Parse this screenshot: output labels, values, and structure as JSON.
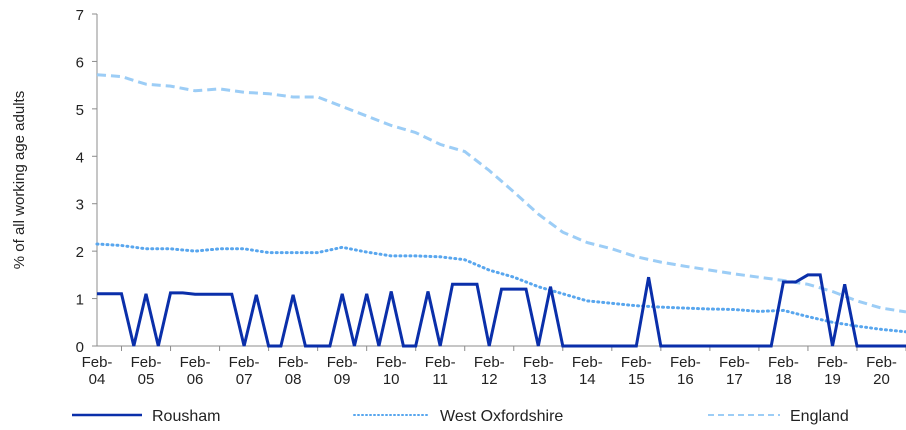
{
  "chart_data": {
    "type": "line",
    "ylabel": "% of all working age adults",
    "ylim": [
      0,
      7
    ],
    "yticks": [
      "0",
      "1",
      "2",
      "3",
      "4",
      "5",
      "6",
      "7"
    ],
    "xlim": [
      2004.08,
      2020.58
    ],
    "xticks": [
      {
        "x": 2004.08,
        "line1": "Feb-",
        "line2": "04"
      },
      {
        "x": 2005.08,
        "line1": "Feb-",
        "line2": "05"
      },
      {
        "x": 2006.08,
        "line1": "Feb-",
        "line2": "06"
      },
      {
        "x": 2007.08,
        "line1": "Feb-",
        "line2": "07"
      },
      {
        "x": 2008.08,
        "line1": "Feb-",
        "line2": "08"
      },
      {
        "x": 2009.08,
        "line1": "Feb-",
        "line2": "09"
      },
      {
        "x": 2010.08,
        "line1": "Feb-",
        "line2": "10"
      },
      {
        "x": 2011.08,
        "line1": "Feb-",
        "line2": "11"
      },
      {
        "x": 2012.08,
        "line1": "Feb-",
        "line2": "12"
      },
      {
        "x": 2013.08,
        "line1": "Feb-",
        "line2": "13"
      },
      {
        "x": 2014.08,
        "line1": "Feb-",
        "line2": "14"
      },
      {
        "x": 2015.08,
        "line1": "Feb-",
        "line2": "15"
      },
      {
        "x": 2016.08,
        "line1": "Feb-",
        "line2": "16"
      },
      {
        "x": 2017.08,
        "line1": "Feb-",
        "line2": "17"
      },
      {
        "x": 2018.08,
        "line1": "Feb-",
        "line2": "18"
      },
      {
        "x": 2019.08,
        "line1": "Feb-",
        "line2": "19"
      },
      {
        "x": 2020.08,
        "line1": "Feb-",
        "line2": "20"
      }
    ],
    "grid": false,
    "legend_position": "bottom",
    "series": [
      {
        "name": "Rousham",
        "color": "#0a2faa",
        "style": "solid",
        "points": [
          [
            2004.08,
            1.1
          ],
          [
            2004.58,
            1.1
          ],
          [
            2004.83,
            0.0
          ],
          [
            2005.08,
            1.1
          ],
          [
            2005.33,
            0.0
          ],
          [
            2005.58,
            1.12
          ],
          [
            2005.83,
            1.12
          ],
          [
            2006.08,
            1.09
          ],
          [
            2006.83,
            1.09
          ],
          [
            2007.08,
            0.0
          ],
          [
            2007.33,
            1.08
          ],
          [
            2007.58,
            0.0
          ],
          [
            2007.83,
            0.0
          ],
          [
            2008.08,
            1.08
          ],
          [
            2008.33,
            0.0
          ],
          [
            2008.83,
            0.0
          ],
          [
            2009.08,
            1.1
          ],
          [
            2009.33,
            0.0
          ],
          [
            2009.58,
            1.1
          ],
          [
            2009.83,
            0.0
          ],
          [
            2010.08,
            1.15
          ],
          [
            2010.33,
            0.0
          ],
          [
            2010.58,
            0.0
          ],
          [
            2010.83,
            1.15
          ],
          [
            2011.08,
            0.0
          ],
          [
            2011.33,
            1.3
          ],
          [
            2011.83,
            1.3
          ],
          [
            2012.08,
            0.0
          ],
          [
            2012.33,
            1.2
          ],
          [
            2012.83,
            1.2
          ],
          [
            2013.08,
            0.0
          ],
          [
            2013.33,
            1.25
          ],
          [
            2013.58,
            0.0
          ],
          [
            2015.08,
            0.0
          ],
          [
            2015.33,
            1.45
          ],
          [
            2015.58,
            0.0
          ],
          [
            2017.83,
            0.0
          ],
          [
            2018.08,
            1.35
          ],
          [
            2018.33,
            1.35
          ],
          [
            2018.58,
            1.5
          ],
          [
            2018.83,
            1.5
          ],
          [
            2019.08,
            0.0
          ],
          [
            2019.33,
            1.3
          ],
          [
            2019.58,
            0.0
          ],
          [
            2020.58,
            0.0
          ]
        ]
      },
      {
        "name": "West Oxfordshire",
        "color": "#58a6ee",
        "style": "dotted",
        "points": [
          [
            2004.08,
            2.15
          ],
          [
            2004.58,
            2.12
          ],
          [
            2005.08,
            2.05
          ],
          [
            2005.58,
            2.05
          ],
          [
            2006.08,
            2.0
          ],
          [
            2006.58,
            2.05
          ],
          [
            2007.08,
            2.05
          ],
          [
            2007.58,
            1.97
          ],
          [
            2008.08,
            1.97
          ],
          [
            2008.58,
            1.97
          ],
          [
            2009.08,
            2.08
          ],
          [
            2009.58,
            1.98
          ],
          [
            2010.08,
            1.9
          ],
          [
            2010.58,
            1.9
          ],
          [
            2011.08,
            1.88
          ],
          [
            2011.58,
            1.82
          ],
          [
            2012.08,
            1.6
          ],
          [
            2012.58,
            1.45
          ],
          [
            2013.08,
            1.25
          ],
          [
            2013.58,
            1.1
          ],
          [
            2014.08,
            0.95
          ],
          [
            2014.58,
            0.9
          ],
          [
            2015.08,
            0.85
          ],
          [
            2015.58,
            0.82
          ],
          [
            2016.08,
            0.8
          ],
          [
            2016.58,
            0.78
          ],
          [
            2017.08,
            0.77
          ],
          [
            2017.58,
            0.73
          ],
          [
            2018.08,
            0.75
          ],
          [
            2018.58,
            0.62
          ],
          [
            2019.08,
            0.5
          ],
          [
            2019.58,
            0.42
          ],
          [
            2020.08,
            0.35
          ],
          [
            2020.58,
            0.3
          ]
        ]
      },
      {
        "name": "England",
        "color": "#9ccdf6",
        "style": "dashed",
        "points": [
          [
            2004.08,
            5.72
          ],
          [
            2004.58,
            5.68
          ],
          [
            2005.08,
            5.52
          ],
          [
            2005.58,
            5.48
          ],
          [
            2006.08,
            5.38
          ],
          [
            2006.58,
            5.42
          ],
          [
            2007.08,
            5.35
          ],
          [
            2007.58,
            5.32
          ],
          [
            2008.08,
            5.25
          ],
          [
            2008.58,
            5.25
          ],
          [
            2009.08,
            5.05
          ],
          [
            2009.58,
            4.85
          ],
          [
            2010.08,
            4.65
          ],
          [
            2010.58,
            4.5
          ],
          [
            2011.08,
            4.25
          ],
          [
            2011.58,
            4.1
          ],
          [
            2012.08,
            3.7
          ],
          [
            2012.58,
            3.25
          ],
          [
            2013.08,
            2.78
          ],
          [
            2013.58,
            2.4
          ],
          [
            2014.08,
            2.18
          ],
          [
            2014.58,
            2.05
          ],
          [
            2015.08,
            1.88
          ],
          [
            2015.58,
            1.77
          ],
          [
            2016.08,
            1.68
          ],
          [
            2016.58,
            1.6
          ],
          [
            2017.08,
            1.52
          ],
          [
            2017.58,
            1.45
          ],
          [
            2018.08,
            1.38
          ],
          [
            2018.58,
            1.3
          ],
          [
            2019.08,
            1.15
          ],
          [
            2019.58,
            0.95
          ],
          [
            2020.08,
            0.8
          ],
          [
            2020.58,
            0.72
          ]
        ]
      }
    ]
  }
}
